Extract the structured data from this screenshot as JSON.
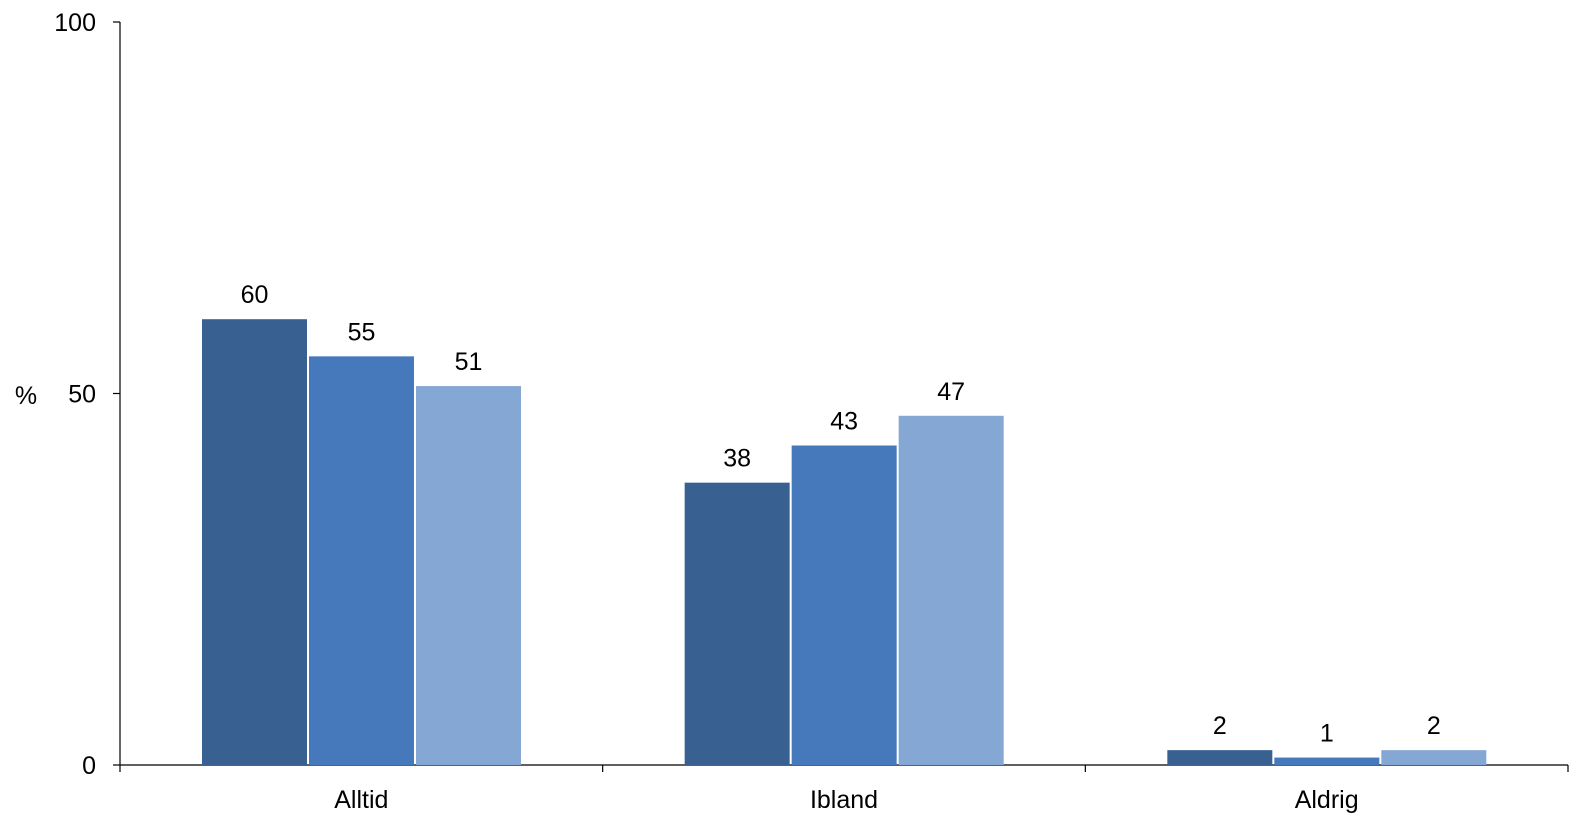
{
  "chart_data": {
    "type": "bar",
    "categories": [
      "Alltid",
      "Ibland",
      "Aldrig"
    ],
    "series": [
      {
        "values": [
          60,
          38,
          2
        ],
        "color": "#386192"
      },
      {
        "values": [
          55,
          43,
          1
        ],
        "color": "#4579BB"
      },
      {
        "values": [
          51,
          47,
          2
        ],
        "color": "#85A7D3"
      }
    ],
    "ylabel": "%",
    "ylim": [
      0,
      100
    ],
    "yticks": [
      0,
      50,
      100
    ],
    "ytick_labels": [
      "0",
      "50",
      "100"
    ],
    "grid": false,
    "legend": "none"
  }
}
